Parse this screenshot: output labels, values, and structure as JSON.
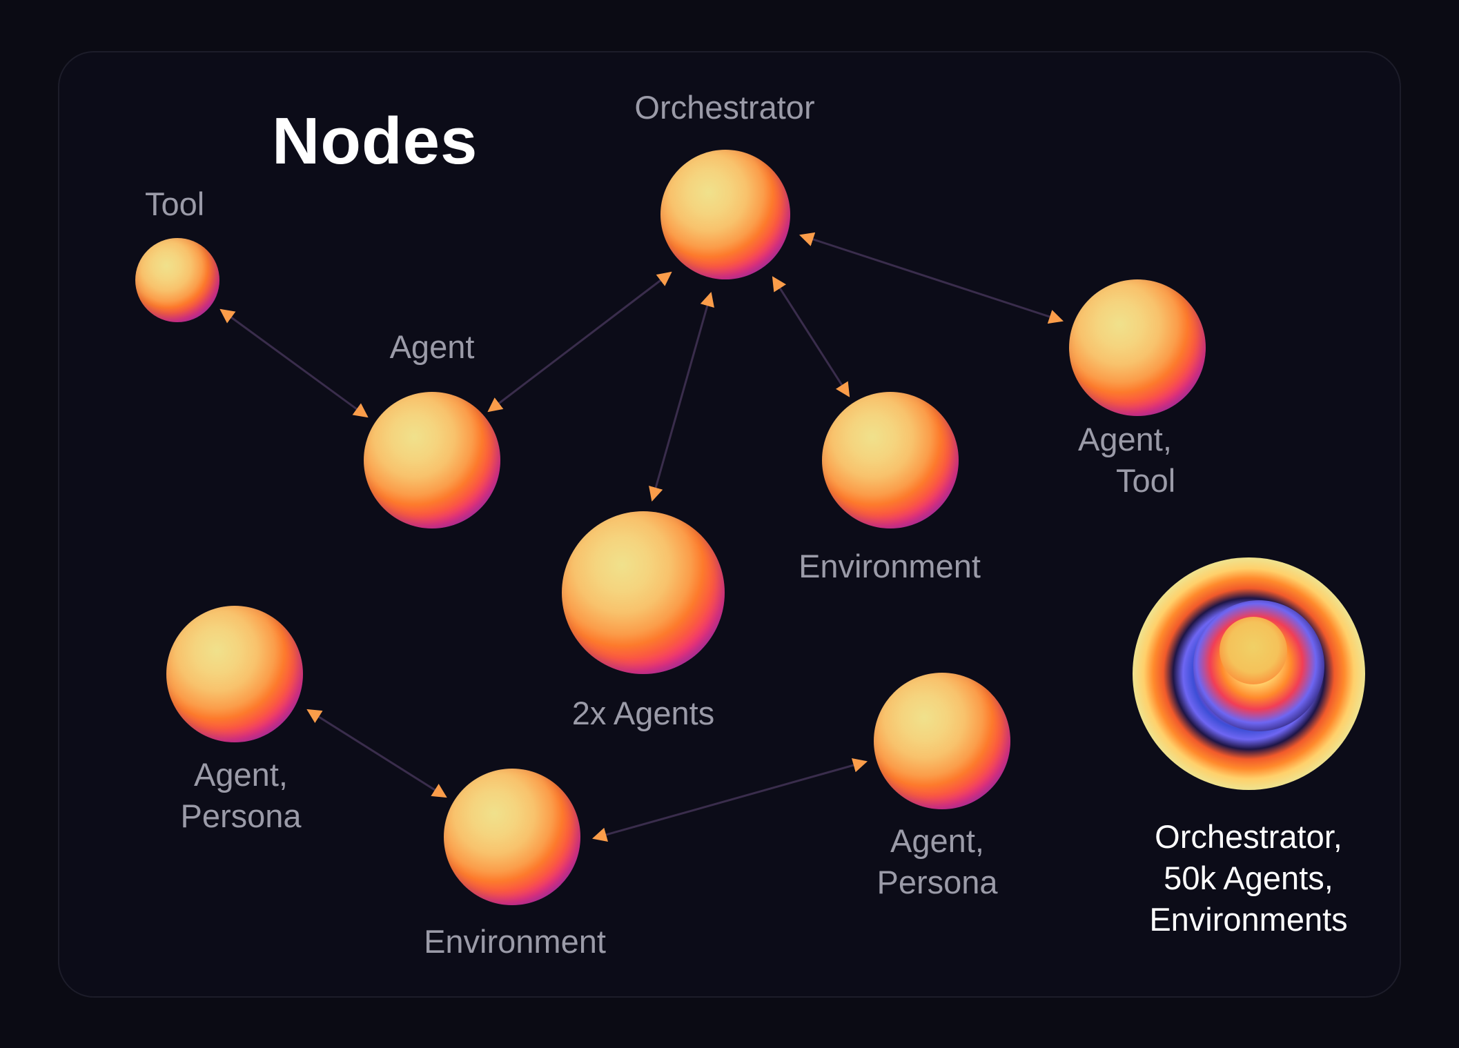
{
  "title": "Nodes",
  "nodes": {
    "tool": "Tool",
    "orchestrator": "Orchestrator",
    "agent": "Agent",
    "agent_tool_1": "Agent,",
    "agent_tool_2": "Tool",
    "environment_top": "Environment",
    "two_agents": "2x Agents",
    "agent_persona_left_1": "Agent,",
    "agent_persona_left_2": "Persona",
    "environment_bottom": "Environment",
    "agent_persona_right_1": "Agent,",
    "agent_persona_right_2": "Persona",
    "big_1": "Orchestrator,",
    "big_2": "50k Agents,",
    "big_3": "Environments"
  },
  "colors": {
    "background": "#0b0b14",
    "label": "#9b9ba8",
    "arrow_head": "#fb9d4a"
  },
  "edges": [
    [
      "tool",
      "agent"
    ],
    [
      "agent",
      "orchestrator"
    ],
    [
      "orchestrator",
      "two-agents"
    ],
    [
      "orchestrator",
      "environment-top"
    ],
    [
      "orchestrator",
      "agent-tool"
    ],
    [
      "agent-persona-left",
      "environment-bottom"
    ],
    [
      "environment-bottom",
      "agent-persona-right"
    ]
  ]
}
